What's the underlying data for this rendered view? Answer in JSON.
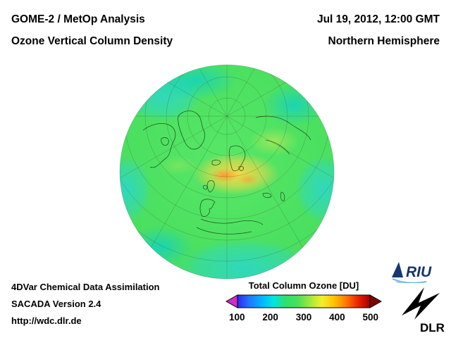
{
  "header": {
    "instrument": "GOME-2 / MetOp Analysis",
    "product": "Ozone Vertical Column Density",
    "datetime": "Jul 19, 2012, 12:00 GMT",
    "region": "Northern Hemisphere"
  },
  "footer": {
    "line1": "4DVar Chemical Data Assimilation",
    "line2": "SACADA Version 2.4",
    "line3": "http://wdc.dlr.de"
  },
  "colorbar": {
    "title": "Total Column Ozone [DU]",
    "unit": "DU",
    "ticks": [
      "100",
      "200",
      "300",
      "400",
      "500"
    ],
    "min": 100,
    "max": 500,
    "gradient": [
      "#2a2aee",
      "#2277ff",
      "#00b4ff",
      "#00e6e0",
      "#2ee06a",
      "#49df5c",
      "#9fe83c",
      "#f2f02a",
      "#ffc400",
      "#ff7a00",
      "#ee2200",
      "#a50000"
    ],
    "arrow_left_color": "#cf2bcf",
    "arrow_right_color": "#7c0000"
  },
  "map_colors": {
    "base_green": "#4ddf62",
    "low_ozone_cyan": "#2fd7cc",
    "high_ozone_yellow": "#ffd746",
    "hotspot_orange": "#ff9632"
  },
  "logos": {
    "riu": "RIU",
    "dlr": "DLR"
  }
}
